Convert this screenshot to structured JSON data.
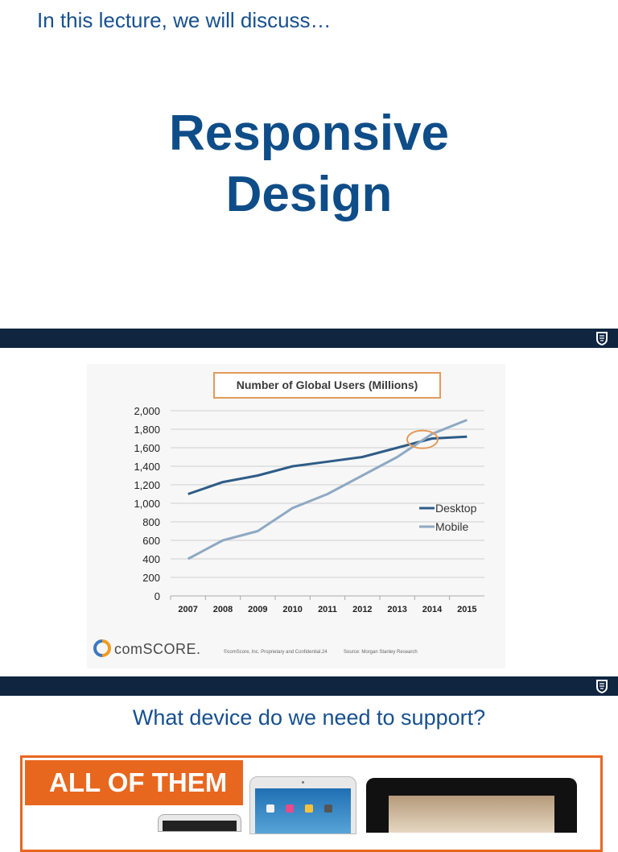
{
  "slide1": {
    "header": "In this lecture, we will discuss…",
    "title_line1": "Responsive",
    "title_line2": "Design"
  },
  "slide2": {
    "source_logo": "comSCORE.",
    "footer_copyright": "©comScore, Inc. Proprietary and Confidential.",
    "footer_page": "24",
    "footer_source": "Source: Morgan Stanley Research"
  },
  "slide3": {
    "title": "What device do we need to support?",
    "banner": "ALL OF THEM"
  },
  "colors": {
    "band": "#0f2540",
    "title_blue": "#0f4d88",
    "desktop_line": "#2e5c87",
    "mobile_line": "#8fa9c3",
    "highlight_circle": "#e39a5a",
    "banner_orange": "#e8671f"
  },
  "icons": [
    "university-crest-icon",
    "comscore-logo-icon"
  ],
  "chart_data": {
    "type": "line",
    "title": "Number of Global Users (Millions)",
    "x": [
      "2007",
      "2008",
      "2009",
      "2010",
      "2011",
      "2012",
      "2013",
      "2014",
      "2015"
    ],
    "ylim": [
      0,
      2000
    ],
    "yticks": [
      "0",
      "200",
      "400",
      "600",
      "800",
      "1,000",
      "1,200",
      "1,400",
      "1,600",
      "1,800",
      "2,000"
    ],
    "series": [
      {
        "name": "Desktop",
        "values": [
          1100,
          1230,
          1300,
          1400,
          1450,
          1500,
          1600,
          1700,
          1720
        ]
      },
      {
        "name": "Mobile",
        "values": [
          400,
          600,
          700,
          950,
          1100,
          1300,
          1500,
          1750,
          1900
        ]
      }
    ],
    "annotation": {
      "type": "circle",
      "x": "2014",
      "y": 1690
    },
    "legend_position": "right",
    "grid": true
  }
}
